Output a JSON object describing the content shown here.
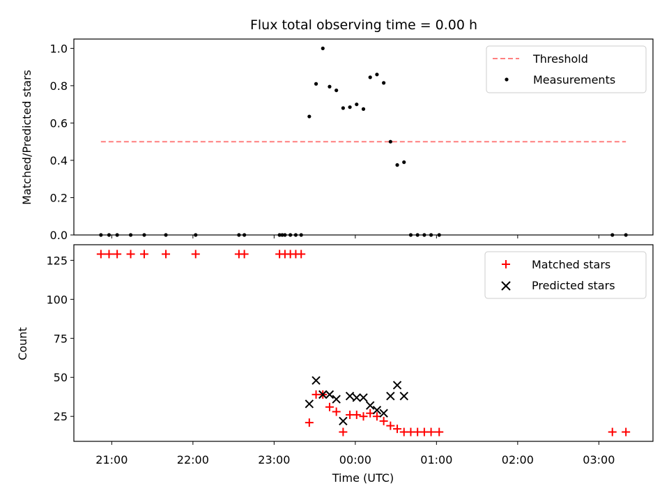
{
  "chart_data": [
    {
      "type": "scatter",
      "title": "Flux total observing time = 0.00 h",
      "xlabel": "",
      "ylabel": "Matched/Predicted stars",
      "ylim": [
        0,
        1.05
      ],
      "xlim": [
        "20:32",
        "03:40"
      ],
      "yticks": [
        "0.0",
        "0.2",
        "0.4",
        "0.6",
        "0.8",
        "1.0"
      ],
      "legend_position": "top-right",
      "series": [
        {
          "name": "Threshold",
          "kind": "line",
          "style": "dashed",
          "color": "#ff7f7f",
          "x": [
            "20:52",
            "03:20"
          ],
          "y": [
            0.5,
            0.5
          ]
        },
        {
          "name": "Measurements",
          "kind": "scatter",
          "color": "#000000",
          "x": [
            "20:52",
            "20:58",
            "21:04",
            "21:14",
            "21:24",
            "21:40",
            "22:02",
            "22:34",
            "22:38",
            "23:04",
            "23:06",
            "23:08",
            "23:12",
            "23:16",
            "23:20",
            "23:26",
            "23:31",
            "23:36",
            "23:41",
            "23:46",
            "23:51",
            "23:56",
            "00:01",
            "00:06",
            "00:11",
            "00:16",
            "00:21",
            "00:26",
            "00:31",
            "00:36",
            "00:41",
            "00:46",
            "00:51",
            "00:56",
            "01:02",
            "03:10",
            "03:20"
          ],
          "y": [
            0.0,
            0.0,
            0.0,
            0.0,
            0.0,
            0.0,
            0.0,
            0.0,
            0.0,
            0.0,
            0.0,
            0.0,
            0.0,
            0.0,
            0.0,
            0.635,
            0.81,
            1.0,
            0.795,
            0.775,
            0.68,
            0.685,
            0.7,
            0.675,
            0.845,
            0.86,
            0.815,
            0.5,
            0.375,
            0.39,
            0.0,
            0.0,
            0.0,
            0.0,
            0.0,
            0.0,
            0.0
          ]
        }
      ]
    },
    {
      "type": "scatter",
      "title": "",
      "xlabel": "Time (UTC)",
      "ylabel": "Count",
      "ylim": [
        9,
        135
      ],
      "xlim": [
        "20:32",
        "03:40"
      ],
      "yticks": [
        "25",
        "50",
        "75",
        "100",
        "125"
      ],
      "xticks": [
        "21:00",
        "22:00",
        "23:00",
        "00:00",
        "01:00",
        "02:00",
        "03:00"
      ],
      "legend_position": "top-right",
      "series": [
        {
          "name": "Matched stars",
          "marker": "plus",
          "color": "#ff0000",
          "x": [
            "20:52",
            "20:58",
            "21:04",
            "21:14",
            "21:24",
            "21:40",
            "22:02",
            "22:34",
            "22:38",
            "23:04",
            "23:08",
            "23:12",
            "23:16",
            "23:20",
            "23:26",
            "23:31",
            "23:36",
            "23:41",
            "23:46",
            "23:51",
            "23:56",
            "00:01",
            "00:06",
            "00:11",
            "00:16",
            "00:21",
            "00:26",
            "00:31",
            "00:36",
            "00:41",
            "00:46",
            "00:51",
            "00:56",
            "01:02",
            "03:10",
            "03:20"
          ],
          "y": [
            129,
            129,
            129,
            129,
            129,
            129,
            129,
            129,
            129,
            129,
            129,
            129,
            129,
            129,
            21,
            39,
            39,
            31,
            28,
            15,
            26,
            26,
            25,
            27,
            25,
            22,
            19,
            17,
            15,
            15,
            15,
            15,
            15,
            15,
            15,
            15
          ]
        },
        {
          "name": "Predicted stars",
          "marker": "x",
          "color": "#000000",
          "x": [
            "23:26",
            "23:31",
            "23:36",
            "23:41",
            "23:46",
            "23:51",
            "23:56",
            "00:01",
            "00:06",
            "00:11",
            "00:16",
            "00:21",
            "00:26",
            "00:31",
            "00:36"
          ],
          "y": [
            33,
            48,
            39,
            39,
            36,
            22,
            38,
            37,
            37,
            32,
            29,
            27,
            38,
            45,
            38
          ]
        }
      ]
    }
  ]
}
